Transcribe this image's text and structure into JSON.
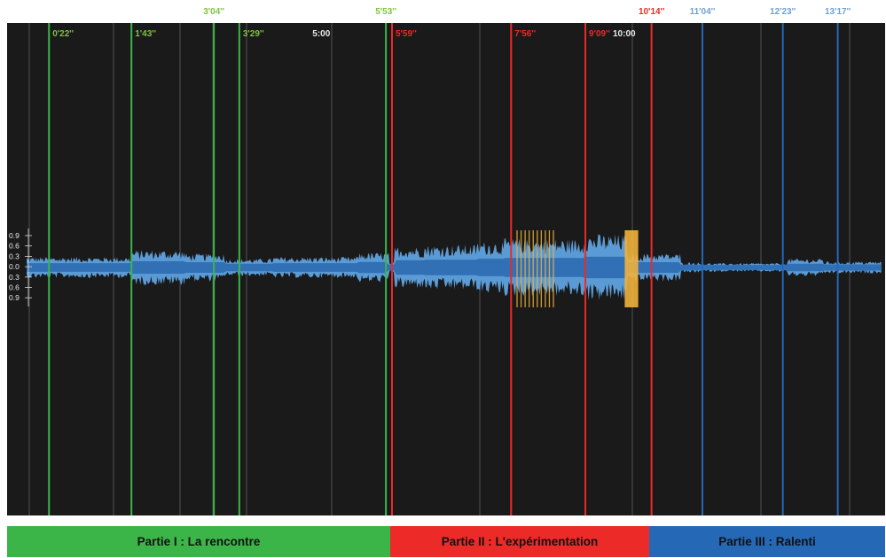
{
  "timeline": {
    "max_seconds": 840,
    "minute_labels": [
      {
        "t": 300,
        "text": "5:00"
      },
      {
        "t": 600,
        "text": "10:00"
      }
    ],
    "amplitude_ticks": [
      "0.9",
      "0.6",
      "0.3",
      "0.0",
      "0.3",
      "0.6",
      "0.9"
    ]
  },
  "colors": {
    "background": "#1a1a1a",
    "grid": "#5a5a5a",
    "minute_text": "#e8e8e8",
    "waveform": "#5b9bd5",
    "waveform_core": "#2d6cb2",
    "highlight": "#f0b23c",
    "part1": "#3cb548",
    "part2": "#ec2a27",
    "part3": "#2468b6",
    "part1_label": "#7ec243",
    "part2_label": "#ec2a27",
    "part3_label": "#6f9fd8"
  },
  "markers": [
    {
      "t": 22,
      "text": "0'22''",
      "part": 1,
      "row": "inner"
    },
    {
      "t": 103,
      "text": "1'43''",
      "part": 1,
      "row": "inner"
    },
    {
      "t": 184,
      "text": "3'04''",
      "part": 1,
      "row": "top"
    },
    {
      "t": 209,
      "text": "3'29''",
      "part": 1,
      "row": "inner"
    },
    {
      "t": 353,
      "text": "5'53''",
      "part": 1,
      "row": "top"
    },
    {
      "t": 359,
      "text": "5'59''",
      "part": 2,
      "row": "inner"
    },
    {
      "t": 476,
      "text": "7'56''",
      "part": 2,
      "row": "inner"
    },
    {
      "t": 549,
      "text": "9'09''",
      "part": 2,
      "row": "inner"
    },
    {
      "t": 614,
      "text": "10'14''",
      "part": 2,
      "row": "top"
    },
    {
      "t": 664,
      "text": "11'04''",
      "part": 3,
      "row": "top"
    },
    {
      "t": 743,
      "text": "12'23''",
      "part": 3,
      "row": "top"
    },
    {
      "t": 797,
      "text": "13'17''",
      "part": 3,
      "row": "top"
    }
  ],
  "sections": [
    {
      "label": "Partie I : La rencontre",
      "color": "#3cb548"
    },
    {
      "label": "Partie II : L'expérimentation",
      "color": "#ec2a27"
    },
    {
      "label": "Partie III : Ralenti",
      "color": "#2468b6"
    }
  ]
}
